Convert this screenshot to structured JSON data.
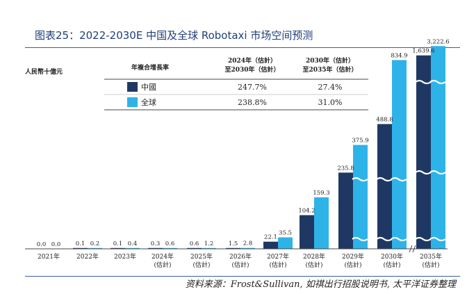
{
  "title": "图表25：2022-2030E 中国及全球 Robotaxi 市场空间预测",
  "source": "资料来源：Frost&Sullivan, 如祺出行招股说明书, 太平洋证券整理",
  "colors": {
    "china": "#1f3863",
    "global": "#2eb3e8",
    "title": "#1f3d7a",
    "rule": "#3a5c9c"
  },
  "chart_data": {
    "type": "bar",
    "ylabel": "人民幣十億元",
    "categories": [
      "2021年",
      "2022年",
      "2023年",
      "2024年\n(估計)",
      "2025年\n(估計)",
      "2026年\n(估計)",
      "2027年\n(估計)",
      "2028年\n(估計)",
      "2029年\n(估計)",
      "2030年\n(估計)",
      "2035年\n(估計)"
    ],
    "series": [
      {
        "name": "中國",
        "values": [
          0.0,
          0.1,
          0.1,
          0.3,
          0.6,
          1.5,
          22.1,
          104.2,
          235.8,
          488.8,
          1639.6
        ],
        "labels": [
          "0.0",
          "0.1",
          "0.1",
          "0.3",
          "0.6",
          "1.5",
          "22.1",
          "104.2",
          "235.8",
          "488.8",
          "1,639.6"
        ]
      },
      {
        "name": "全球",
        "values": [
          0.0,
          0.2,
          0.4,
          0.6,
          1.2,
          2.8,
          35.5,
          159.3,
          375.9,
          834.9,
          3222.6
        ],
        "labels": [
          "0.0",
          "0.2",
          "0.4",
          "0.6",
          "1.2",
          "2.8",
          "35.5",
          "159.3",
          "375.9",
          "834.9",
          "3,222.6"
        ]
      }
    ],
    "axis_break": true,
    "table": {
      "header_label": "年複合增長率",
      "col1": [
        "2024年（估計）",
        "至2030年（估計）"
      ],
      "col2": [
        "2030年（估計）",
        "至2035年（估計）"
      ],
      "rows": [
        {
          "name": "中國",
          "v1": "247.7%",
          "v2": "27.4%"
        },
        {
          "name": "全球",
          "v1": "238.8%",
          "v2": "31.0%"
        }
      ]
    }
  }
}
